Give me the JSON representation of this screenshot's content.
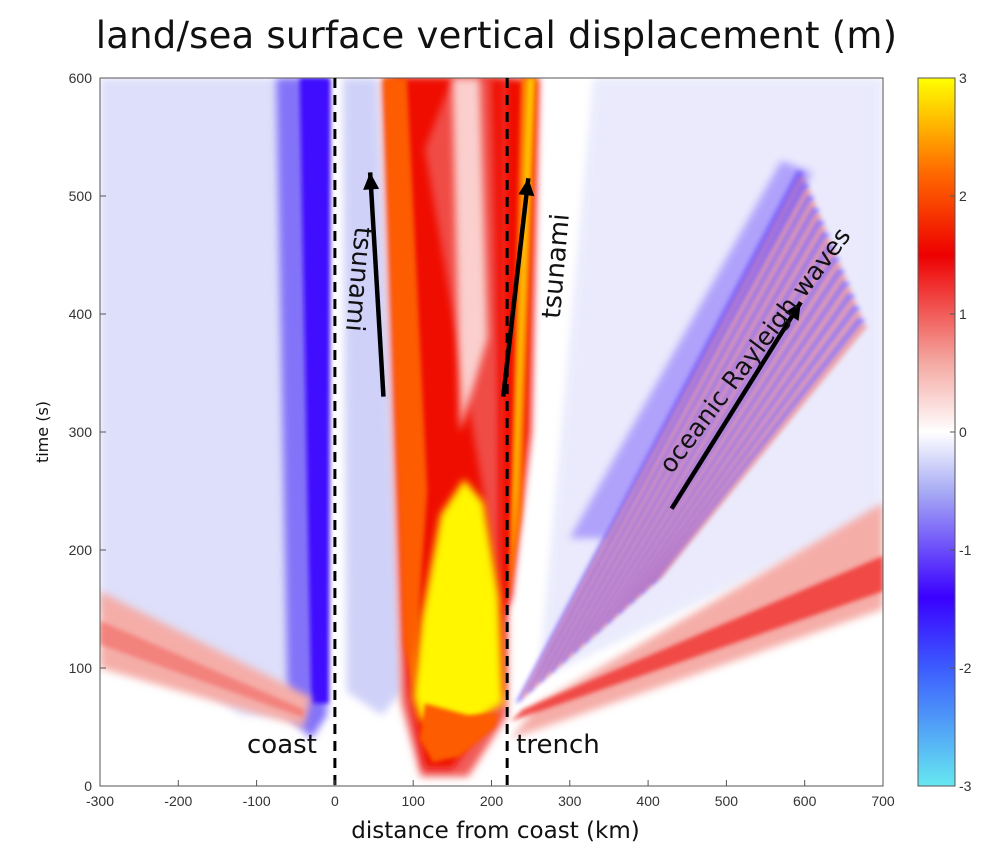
{
  "chart_data": {
    "type": "heatmap",
    "title": "land/sea surface vertical displacement (m)",
    "xlabel": "distance from coast (km)",
    "ylabel": "time (s)",
    "xlim": [
      -300,
      700
    ],
    "ylim": [
      0,
      600
    ],
    "xticks": [
      -300,
      -200,
      -100,
      0,
      100,
      200,
      300,
      400,
      500,
      600,
      700
    ],
    "yticks": [
      0,
      100,
      200,
      300,
      400,
      500,
      600
    ],
    "colorbar": {
      "min": -3,
      "max": 3,
      "ticks": [
        -3,
        -2,
        -1,
        0,
        1,
        2,
        3
      ],
      "stops": [
        {
          "value": -3,
          "color": "#66e8f0"
        },
        {
          "value": -2,
          "color": "#3c5cff"
        },
        {
          "value": -1.4,
          "color": "#3a00ff"
        },
        {
          "value": -0.5,
          "color": "#a8acf4"
        },
        {
          "value": 0,
          "color": "#ffffff"
        },
        {
          "value": 0.6,
          "color": "#f4a6a0"
        },
        {
          "value": 1.5,
          "color": "#ee0000"
        },
        {
          "value": 2.2,
          "color": "#ff6a00"
        },
        {
          "value": 3,
          "color": "#ffff00"
        }
      ]
    },
    "reference_lines": [
      {
        "x": 0,
        "label": "coast",
        "style": "dashed"
      },
      {
        "x": 220,
        "label": "trench",
        "style": "dashed"
      }
    ],
    "annotations": [
      {
        "text": "tsunami",
        "arrow_from": [
          62,
          330
        ],
        "arrow_to": [
          45,
          520
        ]
      },
      {
        "text": "tsunami",
        "arrow_from": [
          215,
          330
        ],
        "arrow_to": [
          247,
          515
        ]
      },
      {
        "text": "oceanic Rayleigh waves",
        "arrow_from": [
          430,
          235
        ],
        "arrow_to": [
          595,
          410
        ]
      }
    ],
    "features": [
      {
        "name": "coastal subsidence",
        "x_range": [
          -60,
          0
        ],
        "time_range": [
          50,
          600
        ],
        "value": -1.3
      },
      {
        "name": "uplift core",
        "x_range": [
          100,
          220
        ],
        "time_range": [
          40,
          230
        ],
        "value": 3
      },
      {
        "name": "landward tsunami crest",
        "x_start": 100,
        "x_end": 60,
        "value": 1.6
      },
      {
        "name": "seaward tsunami crest",
        "x_start": 220,
        "x_end": 255,
        "value": 2.2
      },
      {
        "name": "seismic wavefront landward",
        "time_at_coast": 55,
        "value": 0.6
      },
      {
        "name": "seismic wavefront seaward",
        "time_at_trench": 60,
        "value": 0.7
      }
    ]
  }
}
